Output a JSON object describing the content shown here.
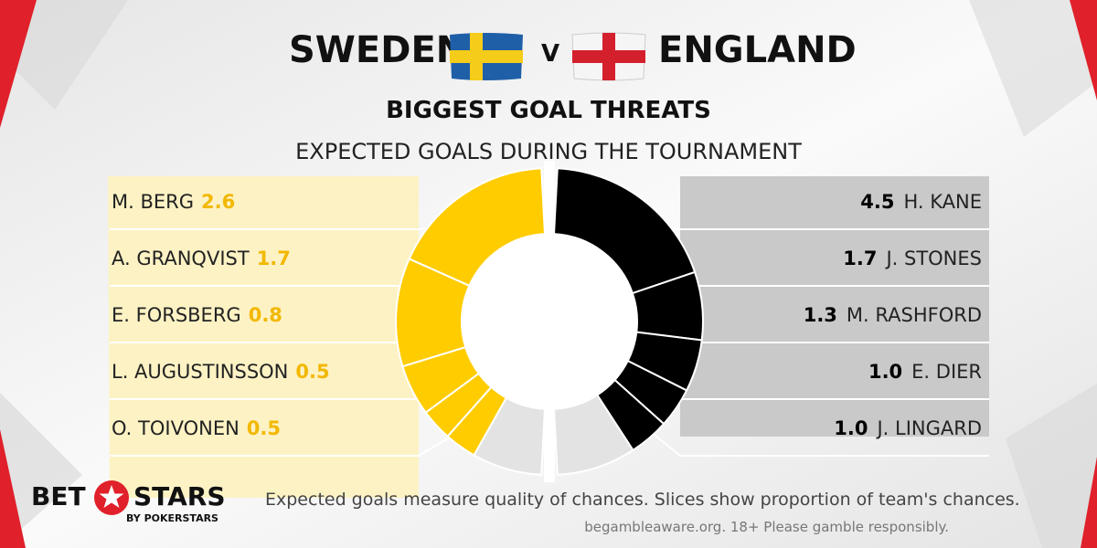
{
  "header": {
    "team_left": "SWEDEN",
    "versus": "V",
    "team_right": "ENGLAND",
    "flag_left": "sweden-flag",
    "flag_right": "england-flag",
    "subtitle": "BIGGEST GOAL THREATS",
    "subtitle2": "EXPECTED GOALS DURING THE TOURNAMENT"
  },
  "colors": {
    "sweden": "#ffcc00",
    "sweden_panel": "#fdf2c4",
    "england": "#000000",
    "england_panel": "#c9c9c9",
    "other": "#e3e3e3",
    "brand_red": "#e0202a"
  },
  "chart_data": {
    "type": "pie",
    "donut": true,
    "sweden": {
      "players": [
        {
          "name": "M. BERG",
          "value": "2.6"
        },
        {
          "name": "A. GRANQVIST",
          "value": "1.7"
        },
        {
          "name": "E. FORSBERG",
          "value": "0.8"
        },
        {
          "name": "L. AUGUSTINSSON",
          "value": "0.5"
        },
        {
          "name": "O. TOIVONEN",
          "value": "0.5"
        }
      ],
      "other_share": 0.18
    },
    "england": {
      "players": [
        {
          "name": "H. KANE",
          "value": "4.5"
        },
        {
          "name": "J. STONES",
          "value": "1.7"
        },
        {
          "name": "M. RASHFORD",
          "value": "1.3"
        },
        {
          "name": "E. DIER",
          "value": "1.0"
        },
        {
          "name": "J. LINGARD",
          "value": "1.0"
        }
      ],
      "other_share": 0.2
    }
  },
  "footer": {
    "note": "Expected goals measure quality of chances. Slices show proportion of team's chances.",
    "gamble": "begambleaware.org.  18+ Please gamble responsibly."
  },
  "logo": {
    "bet": "BET",
    "stars": "STARS",
    "sub": "BY POKERSTARS",
    "icon": "star-icon"
  }
}
